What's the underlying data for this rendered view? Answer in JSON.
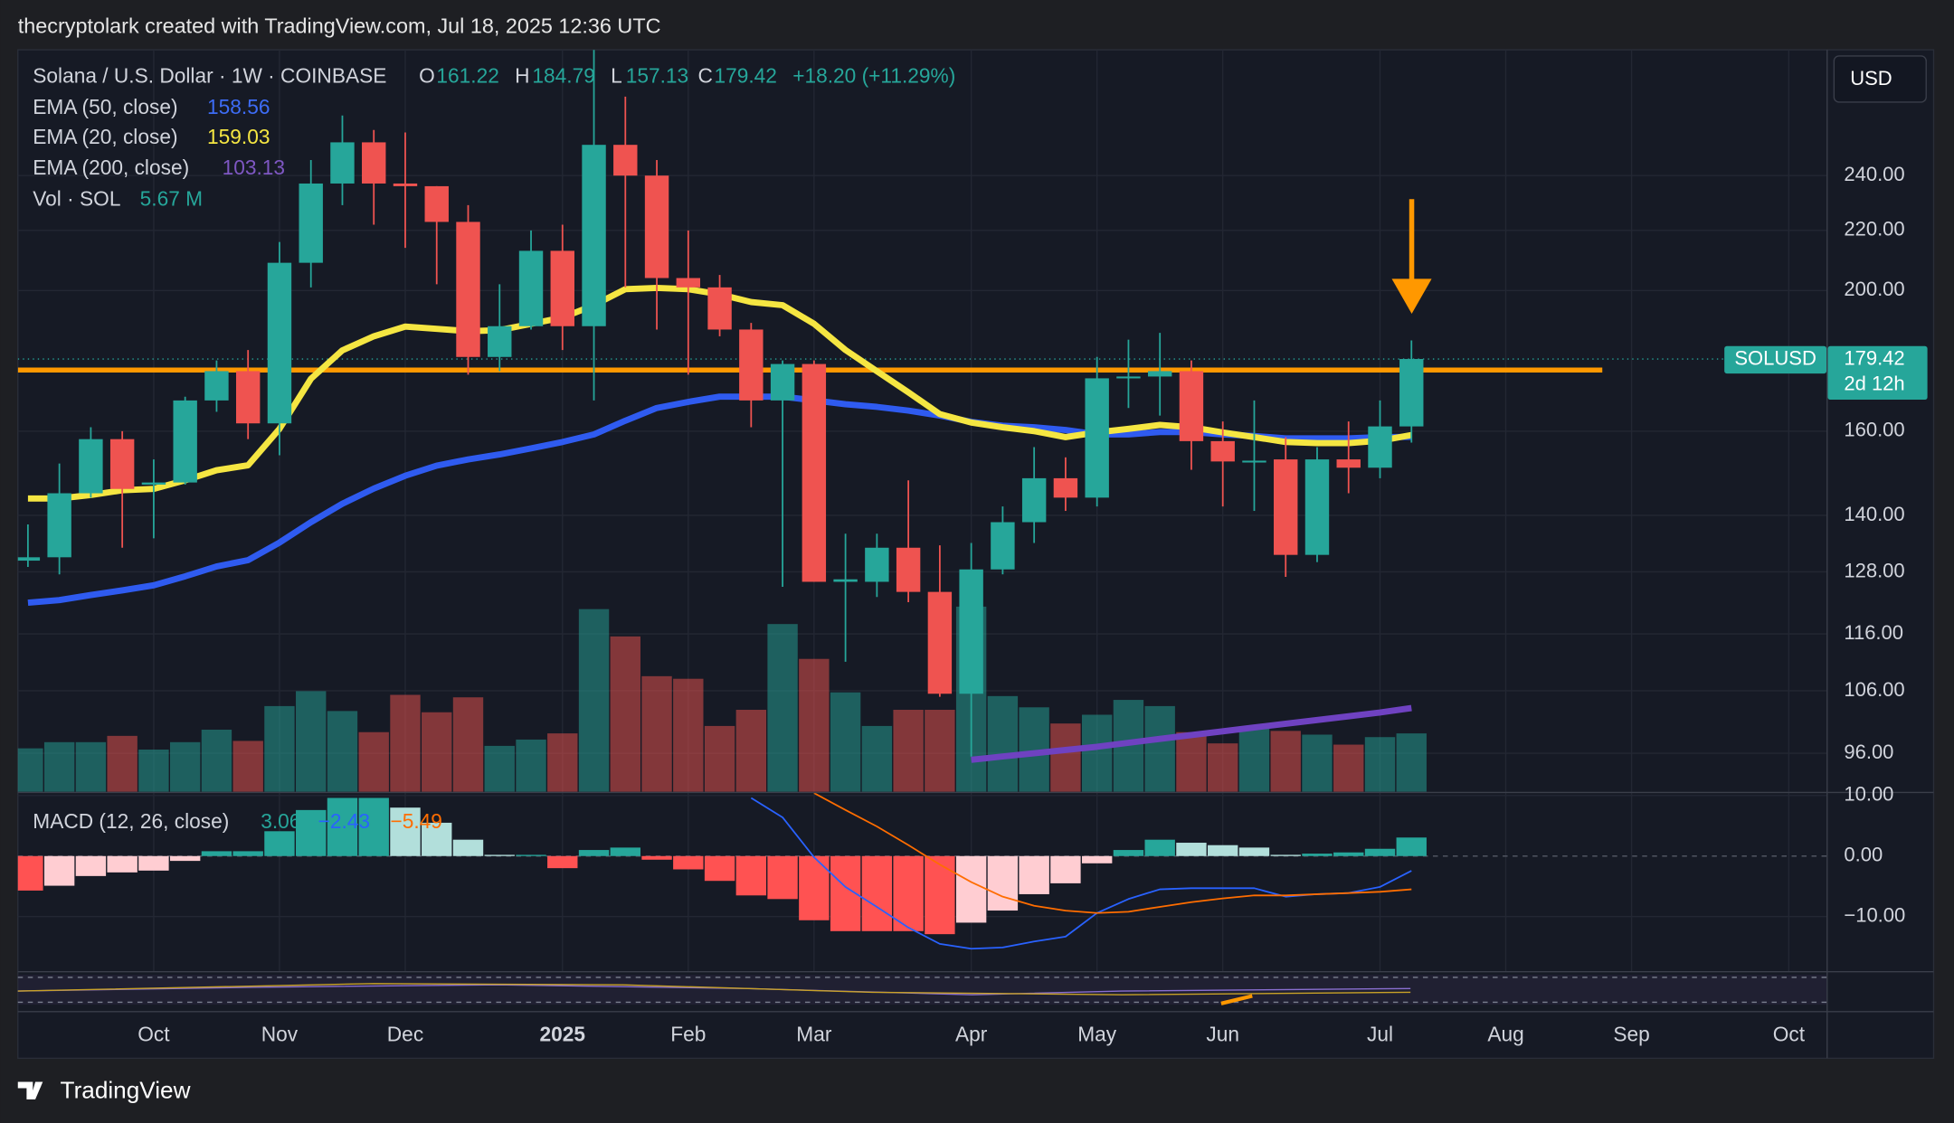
{
  "header": "thecryptolark created with TradingView.com, Jul 18, 2025 12:36 UTC",
  "footer": "TradingView",
  "chart_data": {
    "type": "candlestick",
    "title": "Solana / U.S. Dollar · 1W · COINBASE",
    "ohlc_labels": [
      "O",
      "H",
      "L",
      "C"
    ],
    "change": "+18.20 (+11.29%)",
    "symbol": "SOLUSD",
    "countdown": "2d 12h",
    "currency": "USD",
    "up_color": "#26a69a",
    "down_color": "#ef5350",
    "log": true,
    "grid": true,
    "ylim": [
      90.3,
      293
    ],
    "yticks": [
      {
        "value": 96,
        "label": "96.00"
      },
      {
        "value": 106,
        "label": "106.00"
      },
      {
        "value": 116,
        "label": "116.00"
      },
      {
        "value": 128,
        "label": "128.00"
      },
      {
        "value": 140,
        "label": "140.00"
      },
      {
        "value": 160,
        "label": "160.00"
      },
      {
        "value": 200,
        "label": "200.00"
      },
      {
        "value": 220,
        "label": "220.00"
      },
      {
        "value": 240,
        "label": "240.00"
      }
    ],
    "xlim": [
      -0.32,
      57.2
    ],
    "xticks": [
      {
        "value": 4,
        "label": "Oct"
      },
      {
        "value": 8,
        "label": "Nov"
      },
      {
        "value": 12,
        "label": "Dec"
      },
      {
        "value": 17,
        "label": "2025"
      },
      {
        "value": 21,
        "label": "Feb"
      },
      {
        "value": 25,
        "label": "Mar"
      },
      {
        "value": 30,
        "label": "Apr"
      },
      {
        "value": 34,
        "label": "May"
      },
      {
        "value": 38,
        "label": "Jun"
      },
      {
        "value": 43,
        "label": "Jul"
      },
      {
        "value": 47,
        "label": "Aug"
      },
      {
        "value": 51,
        "label": "Sep"
      },
      {
        "value": 56,
        "label": "Oct"
      }
    ],
    "open": [
      130.3,
      131,
      145,
      158,
      147,
      147.5,
      168,
      176,
      162,
      209,
      237,
      253,
      237,
      236,
      223,
      180,
      189,
      213,
      189,
      252,
      240,
      204,
      201,
      188,
      168,
      178,
      126,
      126,
      133,
      124,
      105.5,
      128.5,
      138.5,
      148.5,
      144,
      174,
      174.5,
      176,
      157.5,
      152.5,
      153,
      131.5,
      153,
      151,
      161.22
    ],
    "high": [
      138,
      152,
      161,
      160,
      153,
      169,
      179,
      182,
      216,
      246,
      264,
      258,
      257,
      236,
      229,
      202,
      220,
      222,
      293,
      272,
      246,
      220,
      205,
      190,
      179,
      179,
      136,
      136,
      148,
      133.5,
      134,
      142,
      156,
      153.5,
      180,
      185,
      187,
      179,
      162.5,
      168,
      158.5,
      156,
      162.5,
      168,
      184.79
    ],
    "low": [
      129,
      127.5,
      144,
      133,
      135,
      147,
      165,
      158,
      154,
      201,
      229,
      222,
      214,
      202,
      175,
      176,
      188,
      182,
      168,
      201,
      188,
      175,
      186,
      161,
      125,
      126,
      111,
      123,
      122,
      105,
      95.5,
      127.5,
      134,
      141,
      142,
      166,
      164,
      150.5,
      142,
      141,
      127,
      130,
      145,
      148.5,
      157.13
    ],
    "close": [
      131,
      145,
      158,
      146,
      147.5,
      168,
      176,
      162,
      209,
      237,
      253,
      237,
      236,
      223,
      180,
      189,
      213,
      189,
      252,
      240,
      204,
      201,
      188,
      168,
      178,
      126,
      126.5,
      133,
      124,
      105.5,
      128.5,
      138.5,
      148.5,
      144,
      174,
      174.5,
      176,
      157.5,
      152.5,
      152.7,
      131.5,
      153,
      151,
      161.22,
      179.42
    ],
    "emas": [
      {
        "name": "EMA (50, close)",
        "color": "#2f5bf0",
        "values": [
          121.9,
          122.4,
          123.4,
          124.3,
          125.3,
          127.1,
          129.1,
          130.4,
          134.1,
          138.5,
          142.6,
          146.1,
          149.1,
          151.5,
          153,
          154.2,
          155.7,
          157.3,
          159.2,
          162.7,
          166,
          167.6,
          169,
          169,
          169,
          168,
          167,
          166.3,
          165.3,
          164,
          162.4,
          161.4,
          161,
          160.3,
          159.2,
          159.2,
          159.8,
          159.8,
          159.2,
          158.8,
          158.2,
          158.2,
          158.2,
          158.5,
          158.56
        ]
      },
      {
        "name": "EMA (20, close)",
        "color": "#f5e642",
        "values": [
          143.8,
          143.8,
          144.6,
          145.7,
          146,
          148,
          150.4,
          151.6,
          160.6,
          173.9,
          181.9,
          186,
          188.9,
          188.2,
          187.5,
          187.8,
          189.7,
          191.6,
          195.4,
          200.4,
          200.8,
          200.4,
          198.8,
          196.4,
          195.4,
          189.7,
          182,
          176,
          170.2,
          164.4,
          162.2,
          161,
          160,
          158.5,
          159.7,
          160.6,
          161.6,
          161,
          159.7,
          158.5,
          157.3,
          157,
          157,
          157.6,
          159.03
        ]
      },
      {
        "name": "EMA (200, close)",
        "color": "#6f42c1",
        "values": [
          null,
          null,
          null,
          null,
          null,
          null,
          null,
          null,
          null,
          null,
          null,
          null,
          null,
          null,
          null,
          null,
          null,
          null,
          null,
          null,
          null,
          null,
          null,
          null,
          null,
          null,
          null,
          null,
          null,
          null,
          95,
          95.5,
          96,
          96.5,
          97,
          97.6,
          98.2,
          98.8,
          99.4,
          100,
          100.6,
          101.2,
          101.8,
          102.4,
          103.13
        ]
      }
    ],
    "hline": {
      "value": 176.3,
      "color": "#ff9800"
    },
    "volume": {
      "name": "Vol · SOL",
      "y2lim": [
        0,
        72
      ],
      "last_label": "5.67 M",
      "values": [
        4.22,
        4.82,
        4.82,
        5.43,
        4.1,
        4.82,
        6.03,
        4.94,
        8.32,
        9.77,
        7.84,
        5.79,
        9.41,
        7.72,
        9.17,
        4.46,
        5.07,
        5.67,
        17.73,
        15.08,
        11.22,
        10.97,
        6.39,
        7.96,
        16.28,
        12.9,
        9.65,
        6.39,
        7.96,
        7.96,
        17.97,
        9.29,
        8.2,
        6.63,
        7.48,
        8.92,
        8.32,
        5.79,
        4.7,
        6.15,
        5.91,
        5.55,
        4.58,
        5.31,
        5.67
      ]
    },
    "macd": {
      "name": "MACD (12, 26, close)",
      "ylim": [
        -19,
        10.4
      ],
      "yticks": [
        {
          "value": 10,
          "label": "10.00"
        },
        {
          "value": 0,
          "label": "0.00"
        },
        {
          "value": -10,
          "label": "−10.00"
        }
      ],
      "legend_labels": [
        "3.06",
        "−2.43",
        "−5.49"
      ],
      "histogram": [
        -5.7,
        -4.9,
        -3.3,
        -2.7,
        -2.4,
        -0.8,
        0.8,
        0.8,
        4.1,
        7.6,
        9.6,
        9.6,
        8,
        5.5,
        2.7,
        0.2,
        0.2,
        -2,
        1,
        1.4,
        -0.6,
        -2.2,
        -4.1,
        -6.5,
        -7.1,
        -10.6,
        -12.4,
        -12.4,
        -12.4,
        -12.9,
        -11,
        -9,
        -6.3,
        -4.5,
        -1.2,
        1,
        2.7,
        2.2,
        1.8,
        1.4,
        0.2,
        0.4,
        0.6,
        1.2,
        3.06
      ],
      "macd_color": "#2962ff",
      "signal_color": "#ff6d00",
      "macd": [
        null,
        null,
        null,
        null,
        null,
        null,
        null,
        null,
        null,
        null,
        null,
        null,
        null,
        null,
        null,
        null,
        null,
        null,
        null,
        null,
        null,
        null,
        null,
        9.6,
        6.4,
        -0.2,
        -5.1,
        -8.4,
        -11.8,
        -14.5,
        -15.3,
        -15.1,
        -14.1,
        -13.3,
        -9.4,
        -7.1,
        -5.5,
        -5.3,
        -5.3,
        -5.3,
        -6.7,
        -6.3,
        -6.1,
        -5.1,
        -2.43
      ],
      "signal": [
        null,
        null,
        null,
        null,
        null,
        null,
        null,
        null,
        null,
        null,
        null,
        null,
        null,
        null,
        null,
        null,
        null,
        null,
        null,
        null,
        null,
        null,
        null,
        null,
        null,
        10.4,
        7.6,
        4.9,
        1.8,
        -1.4,
        -4.3,
        -6.7,
        -8.2,
        -9,
        -9.4,
        -9.2,
        -8.4,
        -7.6,
        -7,
        -6.5,
        -6.5,
        -6.3,
        -6.1,
        -5.9,
        -5.49
      ]
    }
  }
}
